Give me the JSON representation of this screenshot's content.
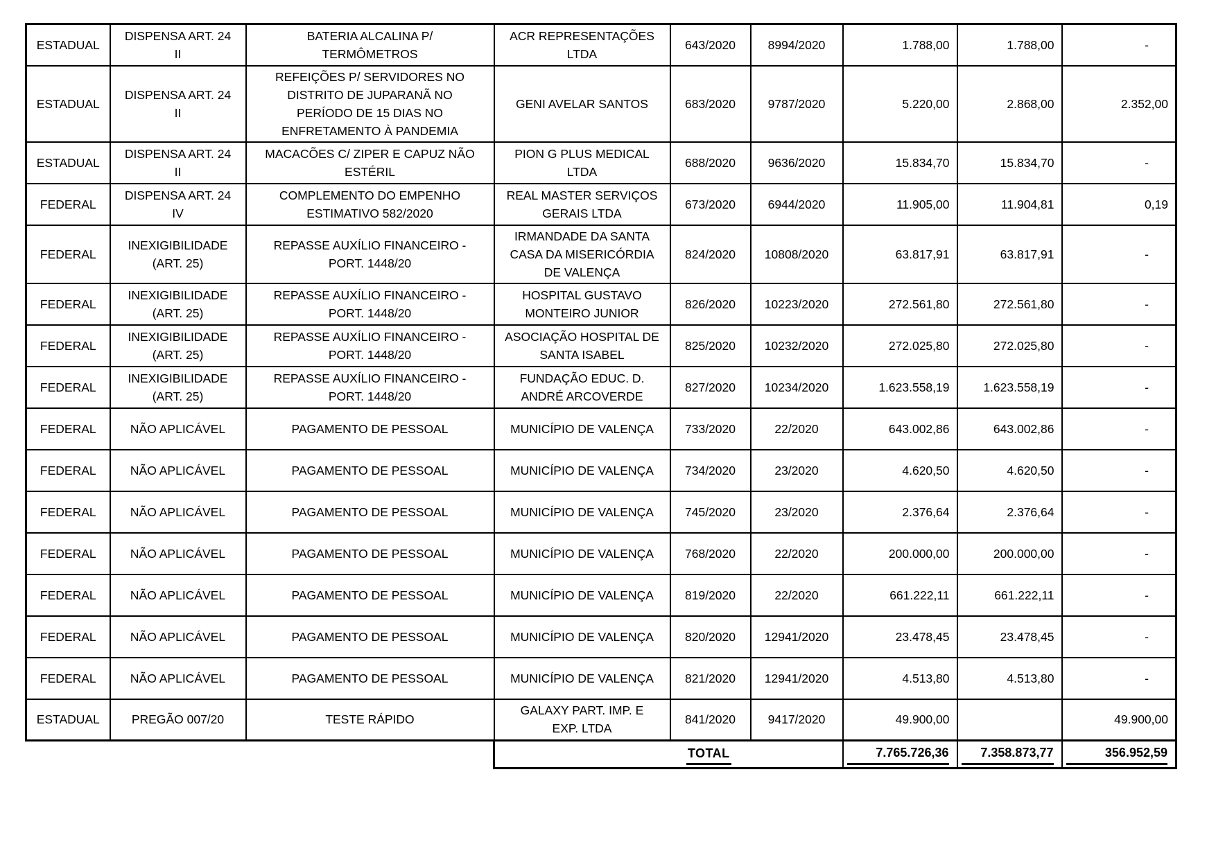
{
  "table": {
    "rows": [
      {
        "esfera": "ESTADUAL",
        "modalidade": "DISPENSA ART.  24\nII",
        "objeto": "BATERIA ALCALINA P/\nTERMÔMETROS",
        "credor": "ACR REPRESENTAÇÕES\nLTDA",
        "empenho": "643/2020",
        "processo": "8994/2020",
        "valor_empenhado": "1.788,00",
        "valor_pago": "1.788,00",
        "saldo": "-"
      },
      {
        "esfera": "ESTADUAL",
        "modalidade": "DISPENSA ART.  24\nII",
        "objeto": "REFEIÇÕES P/ SERVIDORES NO\nDISTRITO DE JUPARANÃ NO\nPERÍODO DE 15 DIAS NO\nENFRETAMENTO À PANDEMIA",
        "credor": "GENI AVELAR SANTOS",
        "empenho": "683/2020",
        "processo": "9787/2020",
        "valor_empenhado": "5.220,00",
        "valor_pago": "2.868,00",
        "saldo": "2.352,00"
      },
      {
        "esfera": "ESTADUAL",
        "modalidade": "DISPENSA ART.  24\nII",
        "objeto": "MACACÕES C/ ZIPER E CAPUZ NÃO\nESTÉRIL",
        "credor": "PION G PLUS MEDICAL\nLTDA",
        "empenho": "688/2020",
        "processo": "9636/2020",
        "valor_empenhado": "15.834,70",
        "valor_pago": "15.834,70",
        "saldo": "-"
      },
      {
        "esfera": "FEDERAL",
        "modalidade": "DISPENSA ART. 24\nIV",
        "objeto": "COMPLEMENTO DO EMPENHO\nESTIMATIVO 582/2020",
        "credor": "REAL MASTER SERVIÇOS\nGERAIS LTDA",
        "empenho": "673/2020",
        "processo": "6944/2020",
        "valor_empenhado": "11.905,00",
        "valor_pago": "11.904,81",
        "saldo": "0,19"
      },
      {
        "esfera": "FEDERAL",
        "modalidade": "INEXIGIBILIDADE\n(ART. 25)",
        "objeto": "REPASSE AUXÍLIO FINANCEIRO -\nPORT. 1448/20",
        "credor": "IRMANDADE DA SANTA\nCASA DA MISERICÓRDIA\nDE VALENÇA",
        "empenho": "824/2020",
        "processo": "10808/2020",
        "valor_empenhado": "63.817,91",
        "valor_pago": "63.817,91",
        "saldo": "-"
      },
      {
        "esfera": "FEDERAL",
        "modalidade": "INEXIGIBILIDADE\n(ART. 25)",
        "objeto": "REPASSE AUXÍLIO FINANCEIRO -\nPORT. 1448/20",
        "credor": "HOSPITAL GUSTAVO\nMONTEIRO JUNIOR",
        "empenho": "826/2020",
        "processo": "10223/2020",
        "valor_empenhado": "272.561,80",
        "valor_pago": "272.561,80",
        "saldo": "-"
      },
      {
        "esfera": "FEDERAL",
        "modalidade": "INEXIGIBILIDADE\n(ART. 25)",
        "objeto": "REPASSE AUXÍLIO FINANCEIRO -\nPORT. 1448/20",
        "credor": "ASOCIAÇÃO HOSPITAL DE\nSANTA ISABEL",
        "empenho": "825/2020",
        "processo": "10232/2020",
        "valor_empenhado": "272.025,80",
        "valor_pago": "272.025,80",
        "saldo": "-"
      },
      {
        "esfera": "FEDERAL",
        "modalidade": "INEXIGIBILIDADE\n(ART. 25)",
        "objeto": "REPASSE AUXÍLIO FINANCEIRO -\nPORT. 1448/20",
        "credor": "FUNDAÇÃO EDUC. D.\nANDRÉ ARCOVERDE",
        "empenho": "827/2020",
        "processo": "10234/2020",
        "valor_empenhado": "1.623.558,19",
        "valor_pago": "1.623.558,19",
        "saldo": "-"
      },
      {
        "esfera": "FEDERAL",
        "modalidade": "NÃO APLICÁVEL",
        "objeto": "PAGAMENTO DE PESSOAL",
        "credor": "MUNICÍPIO DE VALENÇA",
        "empenho": "733/2020",
        "processo": "22/2020",
        "valor_empenhado": "643.002,86",
        "valor_pago": "643.002,86",
        "saldo": "-"
      },
      {
        "esfera": "FEDERAL",
        "modalidade": "NÃO APLICÁVEL",
        "objeto": "PAGAMENTO DE PESSOAL",
        "credor": "MUNICÍPIO DE VALENÇA",
        "empenho": "734/2020",
        "processo": "23/2020",
        "valor_empenhado": "4.620,50",
        "valor_pago": "4.620,50",
        "saldo": "-"
      },
      {
        "esfera": "FEDERAL",
        "modalidade": "NÃO APLICÁVEL",
        "objeto": "PAGAMENTO DE PESSOAL",
        "credor": "MUNICÍPIO DE VALENÇA",
        "empenho": "745/2020",
        "processo": "23/2020",
        "valor_empenhado": "2.376,64",
        "valor_pago": "2.376,64",
        "saldo": "-"
      },
      {
        "esfera": "FEDERAL",
        "modalidade": "NÃO APLICÁVEL",
        "objeto": "PAGAMENTO DE PESSOAL",
        "credor": "MUNICÍPIO DE VALENÇA",
        "empenho": "768/2020",
        "processo": "22/2020",
        "valor_empenhado": "200.000,00",
        "valor_pago": "200.000,00",
        "saldo": "-"
      },
      {
        "esfera": "FEDERAL",
        "modalidade": "NÃO APLICÁVEL",
        "objeto": "PAGAMENTO DE PESSOAL",
        "credor": "MUNICÍPIO DE VALENÇA",
        "empenho": "819/2020",
        "processo": "22/2020",
        "valor_empenhado": "661.222,11",
        "valor_pago": "661.222,11",
        "saldo": "-"
      },
      {
        "esfera": "FEDERAL",
        "modalidade": "NÃO APLICÁVEL",
        "objeto": "PAGAMENTO DE PESSOAL",
        "credor": "MUNICÍPIO DE VALENÇA",
        "empenho": "820/2020",
        "processo": "12941/2020",
        "valor_empenhado": "23.478,45",
        "valor_pago": "23.478,45",
        "saldo": "-"
      },
      {
        "esfera": "FEDERAL",
        "modalidade": "NÃO APLICÁVEL",
        "objeto": "PAGAMENTO DE PESSOAL",
        "credor": "MUNICÍPIO DE VALENÇA",
        "empenho": "821/2020",
        "processo": "12941/2020",
        "valor_empenhado": "4.513,80",
        "valor_pago": "4.513,80",
        "saldo": "-"
      },
      {
        "esfera": "ESTADUAL",
        "modalidade": "PREGÃO 007/20",
        "objeto": "TESTE RÁPIDO",
        "credor": "GALAXY PART.  IMP. E\nEXP. LTDA",
        "empenho": "841/2020",
        "processo": "9417/2020",
        "valor_empenhado": "49.900,00",
        "valor_pago": "",
        "saldo": "49.900,00"
      }
    ],
    "total": {
      "label": "TOTAL",
      "valor_empenhado": "7.765.726,36",
      "valor_pago": "7.358.873,77",
      "saldo": "356.952,59"
    }
  }
}
